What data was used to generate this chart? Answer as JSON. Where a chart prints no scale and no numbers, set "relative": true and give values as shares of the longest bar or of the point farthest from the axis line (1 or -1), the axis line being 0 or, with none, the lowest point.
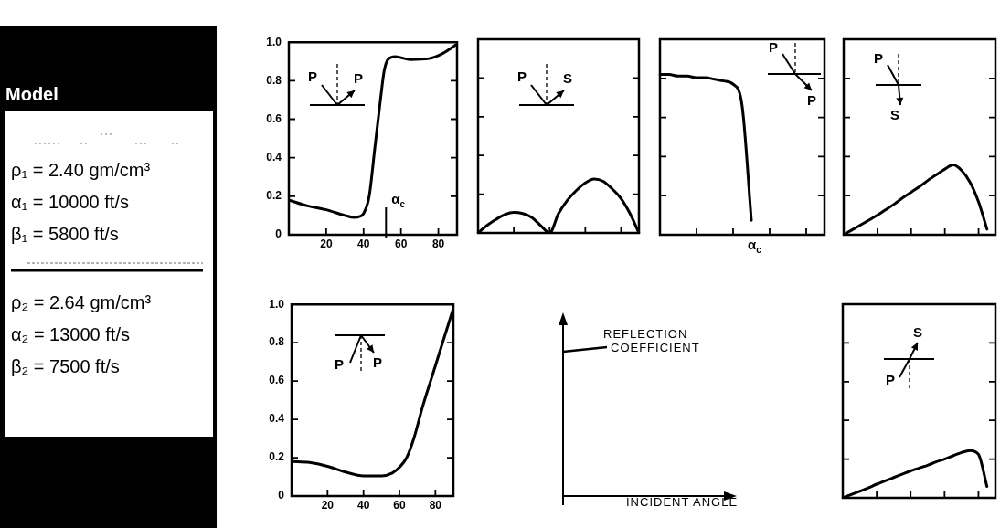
{
  "chart_data": [
    {
      "type": "other",
      "title": "Model",
      "annotations": [
        "ρ₁ = 2.40 gm/cm³",
        "α₁ = 10000 ft/s",
        "β₁ = 5800 ft/s",
        "ρ₂ = 2.64 gm/cm³",
        "α₂ = 13000 ft/s",
        "β₂ = 7500 ft/s"
      ]
    },
    {
      "type": "line",
      "x": [
        0,
        10,
        20,
        30,
        35,
        38,
        40,
        43,
        46,
        49,
        51,
        53,
        57,
        65,
        75,
        82,
        90
      ],
      "series": [
        {
          "color": "#000000",
          "values": [
            0.18,
            0.15,
            0.13,
            0.1,
            0.09,
            0.095,
            0.11,
            0.2,
            0.45,
            0.7,
            0.85,
            0.91,
            0.925,
            0.91,
            0.915,
            0.94,
            0.99
          ]
        }
      ],
      "xlim": [
        0,
        90
      ],
      "ylim": [
        0,
        1
      ],
      "xticks": [
        20,
        40,
        60,
        80
      ],
      "yticks": [
        0,
        0.2,
        0.4,
        0.6,
        0.8,
        {
          "value": 1,
          "label": "1.0"
        }
      ],
      "ref_lines": [
        {
          "axis": "x",
          "value": 52,
          "label": "α$_{c}$"
        }
      ],
      "annotations": [
        "P",
        "P"
      ]
    },
    {
      "type": "line",
      "relative": true,
      "categories": [
        null,
        null,
        null,
        null,
        null,
        null,
        null,
        null,
        null,
        null,
        null,
        null,
        null,
        null,
        null,
        null,
        null,
        null,
        null
      ],
      "series": [
        {
          "color": "#000000",
          "values": [
            0,
            0.14,
            0.25,
            0.34,
            0.38,
            0.36,
            0.29,
            0.14,
            0,
            0.36,
            0.61,
            0.79,
            0.93,
            1,
            0.96,
            0.82,
            0.64,
            0.36,
            0
          ]
        }
      ],
      "annotations": [
        "P",
        "S"
      ]
    },
    {
      "type": "line",
      "relative": true,
      "categories": [
        null,
        null,
        null,
        null,
        null,
        null,
        null,
        null,
        null,
        null,
        null,
        null,
        null,
        null,
        null,
        null,
        null,
        null,
        null
      ],
      "series": [
        {
          "color": "#000000",
          "values": [
            1,
            1,
            0.99,
            0.99,
            0.98,
            0.98,
            0.97,
            0.96,
            0.94,
            0.8,
            0.09,
            null,
            null,
            null,
            null,
            null,
            null,
            null,
            null
          ]
        }
      ],
      "annotations": [
        "P",
        "P",
        "α$_{c}$"
      ]
    },
    {
      "type": "line",
      "relative": true,
      "categories": [
        null,
        null,
        null,
        null,
        null,
        null,
        null,
        null,
        null,
        null,
        null,
        null,
        null,
        null,
        null,
        null,
        null,
        null,
        null
      ],
      "series": [
        {
          "color": "#000000",
          "values": [
            0,
            0.07,
            0.14,
            0.21,
            0.28,
            0.36,
            0.44,
            0.53,
            0.61,
            0.69,
            0.78,
            0.86,
            0.94,
            1,
            0.92,
            0.75,
            0.47,
            0.08,
            null
          ]
        }
      ],
      "annotations": [
        "P",
        "S"
      ]
    },
    {
      "type": "line",
      "x": [
        0,
        10,
        20,
        30,
        40,
        50,
        56,
        60,
        64,
        68,
        73,
        78,
        82,
        86,
        90
      ],
      "series": [
        {
          "color": "#000000",
          "values": [
            0.18,
            0.175,
            0.155,
            0.125,
            0.105,
            0.105,
            0.12,
            0.15,
            0.2,
            0.3,
            0.47,
            0.62,
            0.74,
            0.86,
            0.98
          ]
        }
      ],
      "xlim": [
        0,
        90
      ],
      "ylim": [
        0,
        1
      ],
      "xticks": [
        20,
        40,
        60,
        80
      ],
      "yticks": [
        0,
        0.2,
        0.4,
        0.6,
        0.8,
        {
          "value": 1,
          "label": "1.0"
        }
      ],
      "annotations": [
        "P",
        "P"
      ]
    },
    {
      "type": "other",
      "annotations": [
        "REFLECTION COEFFICIENT",
        "INCIDENT ANGLE"
      ]
    },
    {
      "type": "line",
      "relative": true,
      "categories": [
        null,
        null,
        null,
        null,
        null,
        null,
        null,
        null,
        null,
        null,
        null,
        null,
        null,
        null,
        null,
        null,
        null,
        null,
        null
      ],
      "series": [
        {
          "color": "#000000",
          "values": [
            0,
            0.07,
            0.14,
            0.21,
            0.29,
            0.36,
            0.43,
            0.5,
            0.57,
            0.63,
            0.69,
            0.76,
            0.82,
            0.89,
            0.96,
            1,
            0.92,
            0.24,
            null
          ]
        }
      ],
      "annotations": [
        "P",
        "S"
      ]
    }
  ]
}
